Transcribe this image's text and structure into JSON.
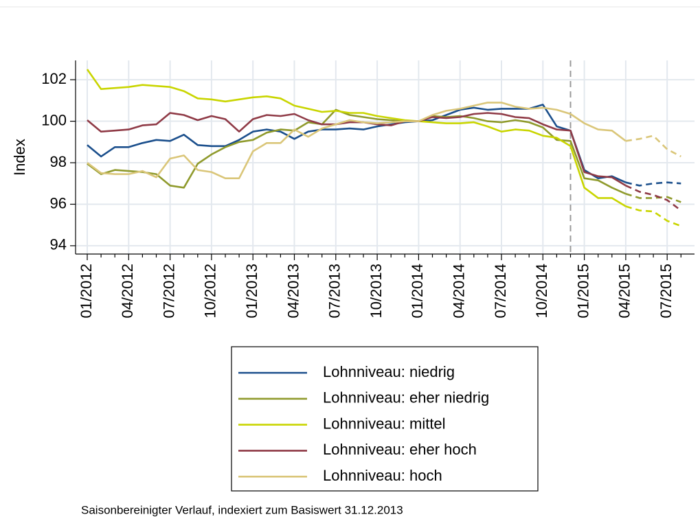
{
  "chart_data": {
    "type": "line",
    "y_label": "Index",
    "note": "Saisonbereinigter Verlauf, indexiert zum Basiswert 31.12.2013",
    "categories": [
      "01/2012",
      null,
      null,
      "04/2012",
      null,
      null,
      "07/2012",
      null,
      null,
      "10/2012",
      null,
      null,
      "01/2013",
      null,
      null,
      "04/2013",
      null,
      null,
      "07/2013",
      null,
      null,
      "10/2013",
      null,
      null,
      "01/2014",
      null,
      null,
      "04/2014",
      null,
      null,
      "07/2014",
      null,
      null,
      "10/2014",
      null,
      null,
      "01/2015",
      null,
      null,
      "04/2015",
      null,
      null,
      "07/2015",
      null
    ],
    "ylim": [
      93.6,
      102.93
    ],
    "yticks": [
      94,
      96,
      98,
      100,
      102
    ],
    "grid": true,
    "dashed_from_index": 39,
    "reference_line_index": 35,
    "series": [
      {
        "name": "Lohnniveau: niedrig",
        "color": "#1b4f8c",
        "values": [
          98.85,
          98.3,
          98.75,
          98.75,
          98.95,
          99.1,
          99.05,
          99.35,
          98.85,
          98.8,
          98.8,
          99.1,
          99.5,
          99.6,
          99.5,
          99.15,
          99.5,
          99.6,
          99.6,
          99.65,
          99.6,
          99.75,
          99.85,
          99.95,
          100.0,
          100.05,
          100.3,
          100.55,
          100.65,
          100.55,
          100.6,
          100.6,
          100.6,
          100.8,
          99.75,
          99.55,
          97.65,
          97.25,
          97.35,
          97.05,
          96.9,
          97.0,
          97.05,
          97.0
        ]
      },
      {
        "name": "Lohnniveau: eher niedrig",
        "color": "#8f9a2c",
        "values": [
          97.95,
          97.45,
          97.65,
          97.6,
          97.55,
          97.45,
          96.9,
          96.8,
          97.95,
          98.4,
          98.75,
          99.0,
          99.1,
          99.45,
          99.6,
          99.55,
          99.95,
          99.85,
          100.55,
          100.3,
          100.2,
          100.1,
          100.05,
          100.0,
          100.0,
          100.25,
          100.2,
          100.25,
          100.15,
          100.0,
          99.95,
          100.05,
          99.95,
          99.7,
          99.1,
          99.05,
          97.25,
          97.15,
          96.8,
          96.5,
          96.3,
          96.3,
          96.35,
          96.1
        ]
      },
      {
        "name": "Lohnniveau: mittel",
        "color": "#c9d500",
        "values": [
          102.5,
          101.55,
          101.6,
          101.65,
          101.75,
          101.7,
          101.65,
          101.45,
          101.1,
          101.05,
          100.95,
          101.05,
          101.15,
          101.2,
          101.1,
          100.75,
          100.6,
          100.45,
          100.5,
          100.4,
          100.4,
          100.25,
          100.15,
          100.05,
          100.0,
          99.95,
          99.9,
          99.9,
          99.95,
          99.75,
          99.5,
          99.6,
          99.55,
          99.3,
          99.2,
          98.8,
          96.8,
          96.3,
          96.3,
          95.9,
          95.7,
          95.65,
          95.2,
          94.95
        ]
      },
      {
        "name": "Lohnniveau: eher hoch",
        "color": "#8f3a46",
        "values": [
          100.05,
          99.5,
          99.55,
          99.6,
          99.8,
          99.85,
          100.4,
          100.3,
          100.05,
          100.25,
          100.1,
          99.5,
          100.1,
          100.3,
          100.25,
          100.35,
          100.05,
          99.85,
          99.85,
          99.95,
          99.95,
          99.85,
          99.8,
          100.0,
          100.0,
          100.2,
          100.15,
          100.2,
          100.35,
          100.4,
          100.35,
          100.2,
          100.15,
          99.85,
          99.6,
          99.55,
          97.55,
          97.35,
          97.3,
          96.9,
          96.6,
          96.45,
          96.2,
          95.7
        ]
      },
      {
        "name": "Lohnniveau: hoch",
        "color": "#dac679",
        "values": [
          98.0,
          97.5,
          97.45,
          97.45,
          97.6,
          97.3,
          98.2,
          98.35,
          97.65,
          97.55,
          97.25,
          97.25,
          98.55,
          98.95,
          98.95,
          99.6,
          99.25,
          99.65,
          99.85,
          100.05,
          99.95,
          99.9,
          99.95,
          100.0,
          100.0,
          100.3,
          100.5,
          100.6,
          100.75,
          100.9,
          100.9,
          100.7,
          100.6,
          100.65,
          100.55,
          100.35,
          99.9,
          99.6,
          99.55,
          99.05,
          99.15,
          99.3,
          98.65,
          98.3
        ]
      }
    ]
  }
}
